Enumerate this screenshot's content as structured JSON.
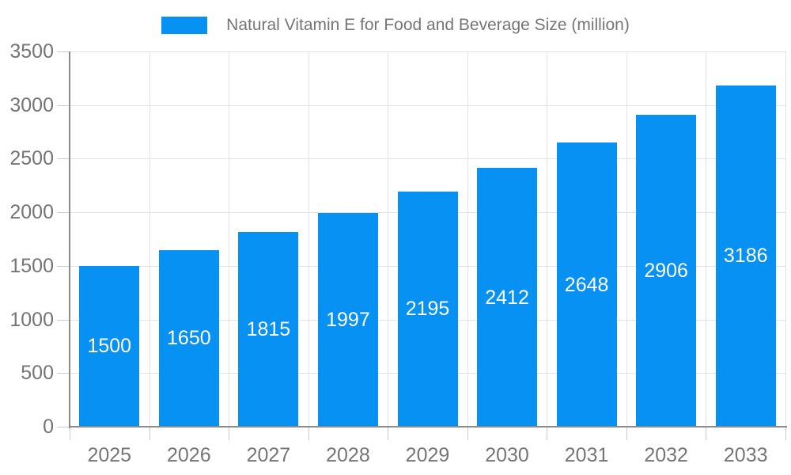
{
  "legend": {
    "label": "Natural Vitamin E for Food and Beverage Size (million)"
  },
  "chart_data": {
    "type": "bar",
    "title": "Natural Vitamin E for Food and Beverage Size (million)",
    "categories": [
      "2025",
      "2026",
      "2027",
      "2028",
      "2029",
      "2030",
      "2031",
      "2032",
      "2033"
    ],
    "values": [
      1500,
      1650,
      1815,
      1997,
      2195,
      2412,
      2648,
      2906,
      3186
    ],
    "xlabel": "",
    "ylabel": "",
    "ylim": [
      0,
      3500
    ],
    "ytick_step": 500,
    "ytick_labels": [
      "0",
      "500",
      "1000",
      "1500",
      "2000",
      "2500",
      "3000",
      "3500"
    ],
    "grid": true,
    "legend_position": "top",
    "bar_color": "#0791f2",
    "bar_label_color": "#ffffff",
    "axis_text_color": "#757575",
    "gridline_color": "#e3e3e3",
    "axis_line_color": "#8b8b8b",
    "tick_color": "#cccccc"
  }
}
